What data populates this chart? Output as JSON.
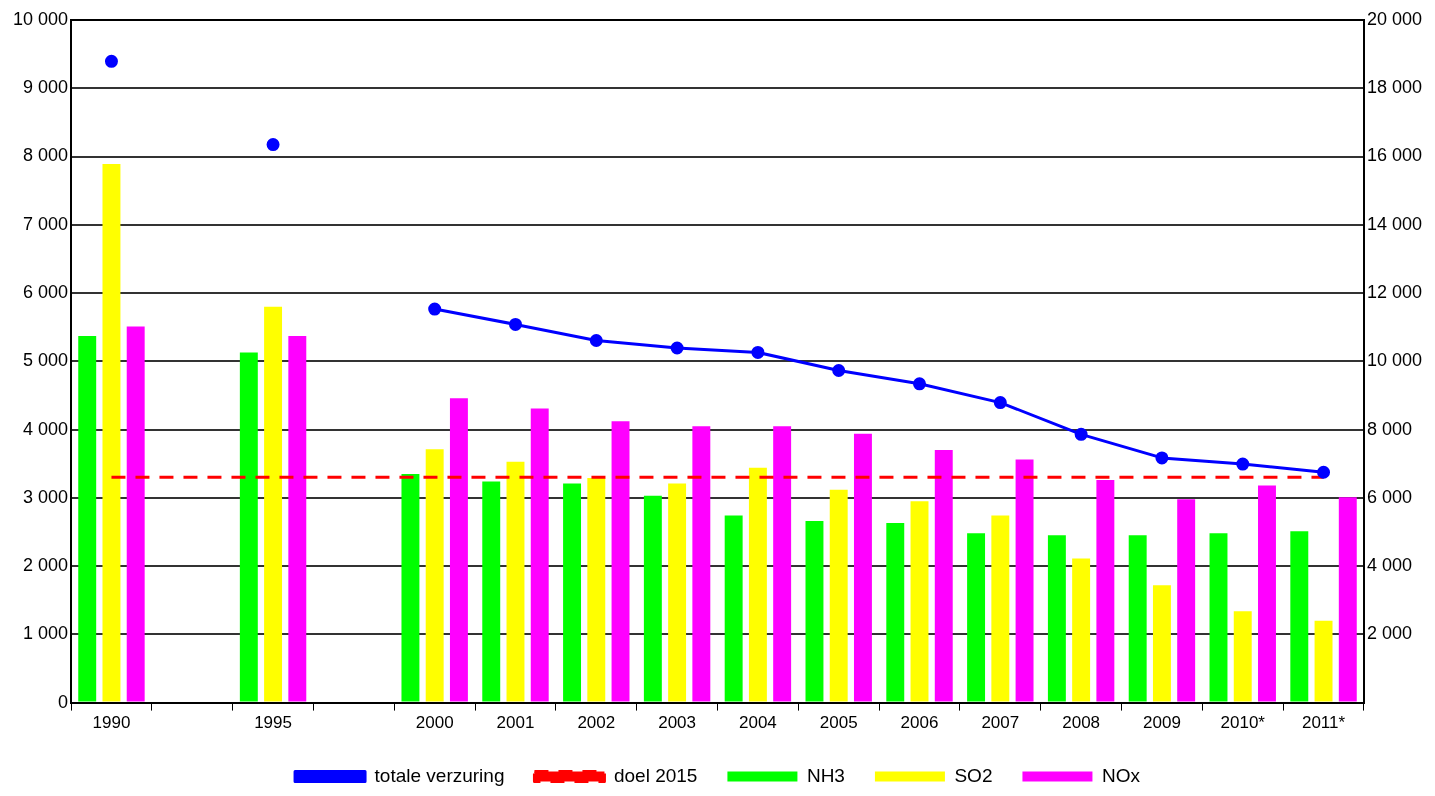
{
  "chart_data": {
    "type": "bar",
    "categories": [
      "1990",
      null,
      "1995",
      null,
      "2000",
      "2001",
      "2002",
      "2003",
      "2004",
      "2005",
      "2006",
      "2007",
      "2008",
      "2009",
      "2010*",
      "2011*"
    ],
    "series": [
      {
        "name": "NH3",
        "color": "#00ff00",
        "values": [
          5370,
          null,
          5130,
          null,
          3350,
          3240,
          3210,
          3030,
          2740,
          2660,
          2630,
          2480,
          2450,
          2450,
          2480,
          2510
        ]
      },
      {
        "name": "SO2",
        "color": "#ffff00",
        "values": [
          7890,
          null,
          5800,
          null,
          3710,
          3530,
          3290,
          3210,
          3440,
          3120,
          2950,
          2740,
          2110,
          1720,
          1340,
          1200
        ]
      },
      {
        "name": "NOx",
        "color": "#ff00ff",
        "values": [
          5510,
          null,
          5370,
          null,
          4460,
          4310,
          4120,
          4050,
          4050,
          3940,
          3700,
          3560,
          3260,
          2980,
          3180,
          3010
        ]
      },
      {
        "name": "totale verzuring",
        "type": "line",
        "axis": "y2",
        "color": "#0000ff",
        "marker": "circle",
        "line_style": "solid",
        "values": [
          18790,
          null,
          16350,
          null,
          11530,
          11080,
          10610,
          10390,
          10260,
          9730,
          9340,
          8790,
          7860,
          7170,
          6990,
          6750
        ]
      },
      {
        "name": "doel 2015",
        "type": "line",
        "color": "#ff0000",
        "marker": "none",
        "line_style": "dashed",
        "values": [
          3300,
          3300,
          3300,
          3300,
          3300,
          3300,
          3300,
          3300,
          3300,
          3300,
          3300,
          3300,
          3300,
          3300,
          3300,
          3300
        ]
      }
    ],
    "ylim": [
      0,
      10000
    ],
    "yticks": [
      0,
      {
        "value": 1000,
        "label": "1 000"
      },
      {
        "value": 2000,
        "label": "2 000"
      },
      {
        "value": 3000,
        "label": "3 000"
      },
      {
        "value": 4000,
        "label": "4 000"
      },
      {
        "value": 5000,
        "label": "5 000"
      },
      {
        "value": 6000,
        "label": "6 000"
      },
      {
        "value": 7000,
        "label": "7 000"
      },
      {
        "value": 8000,
        "label": "8 000"
      },
      {
        "value": 9000,
        "label": "9 000"
      },
      {
        "value": 10000,
        "label": "10 000"
      }
    ],
    "y2lim": [
      0,
      20000
    ],
    "y2ticks": [
      {
        "value": 2000,
        "label": "2 000"
      },
      {
        "value": 4000,
        "label": "4 000"
      },
      {
        "value": 6000,
        "label": "6 000"
      },
      {
        "value": 8000,
        "label": "8 000"
      },
      {
        "value": 10000,
        "label": "10 000"
      },
      {
        "value": 12000,
        "label": "12 000"
      },
      {
        "value": 14000,
        "label": "14 000"
      },
      {
        "value": 16000,
        "label": "16 000"
      },
      {
        "value": 18000,
        "label": "18 000"
      },
      {
        "value": 20000,
        "label": "20 000"
      }
    ],
    "grid": "y",
    "legend": "bottom"
  }
}
